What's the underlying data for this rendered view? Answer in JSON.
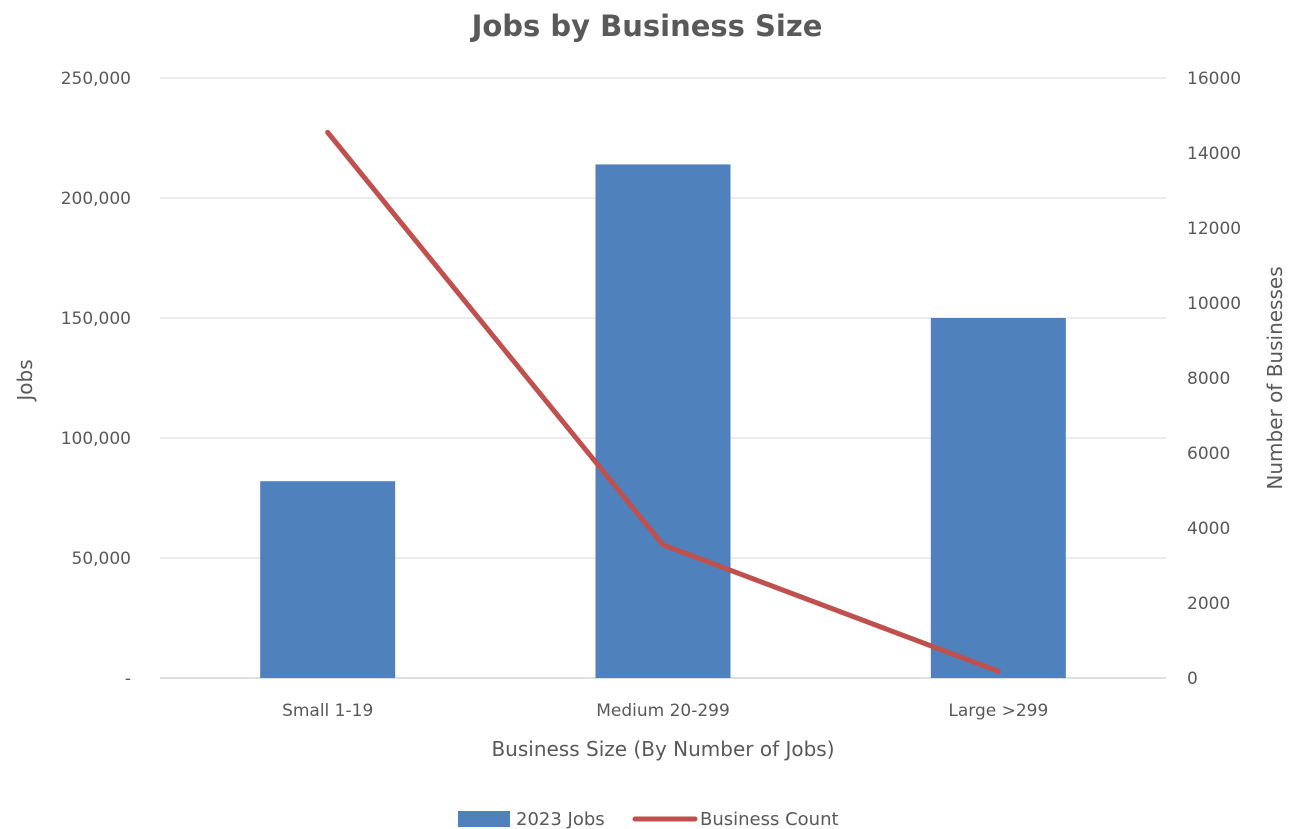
{
  "chart_data": {
    "type": "bar",
    "title": "Jobs by Business Size",
    "xlabel": "Business Size (By Number of Jobs)",
    "ylabel": "Jobs",
    "y2label": "Number of Businesses",
    "categories": [
      "Small 1-19",
      "Medium 20-299",
      "Large >299"
    ],
    "ylim": [
      0,
      250000
    ],
    "y_ticks": [
      "-",
      "50,000",
      "100,000",
      "150,000",
      "200,000",
      "250,000"
    ],
    "y2lim": [
      0,
      16000
    ],
    "y2_ticks": [
      "0",
      "2000",
      "4000",
      "6000",
      "8000",
      "10000",
      "12000",
      "14000",
      "16000"
    ],
    "grid": true,
    "legend": "bottom",
    "series": [
      {
        "name": "2023 Jobs",
        "type": "bar",
        "axis": "left",
        "color": "#4F81BD",
        "values": [
          82000,
          214000,
          150000
        ]
      },
      {
        "name": "Business Count",
        "type": "line",
        "axis": "right",
        "color": "#C0504D",
        "values": [
          14550,
          3550,
          180
        ]
      }
    ]
  }
}
